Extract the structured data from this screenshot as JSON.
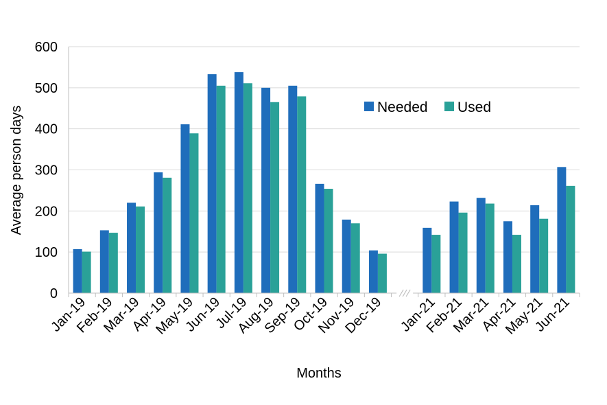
{
  "chart_data": {
    "type": "bar",
    "title": "",
    "xlabel": "Months",
    "ylabel": "Average person days",
    "ylim": [
      0,
      600
    ],
    "yticks": [
      0,
      100,
      200,
      300,
      400,
      500,
      600
    ],
    "grid": true,
    "legend_position": "top-right",
    "axis_break_between": [
      "Dec-19",
      "Jan-21"
    ],
    "categories": [
      "Jan-19",
      "Feb-19",
      "Mar-19",
      "Apr-19",
      "May-19",
      "Jun-19",
      "Jul-19",
      "Aug-19",
      "Sep-19",
      "Oct-19",
      "Nov-19",
      "Dec-19",
      "",
      "Jan-21",
      "Feb-21",
      "Mar-21",
      "Apr-21",
      "May-21",
      "Jun-21"
    ],
    "series": [
      {
        "name": "Needed",
        "color": "#1f6dbb",
        "values": [
          107,
          153,
          220,
          294,
          411,
          533,
          538,
          500,
          505,
          266,
          179,
          104,
          null,
          159,
          223,
          232,
          175,
          214,
          307
        ]
      },
      {
        "name": "Used",
        "color": "#2aa198",
        "values": [
          101,
          147,
          211,
          281,
          389,
          505,
          511,
          465,
          479,
          254,
          170,
          96,
          null,
          142,
          196,
          218,
          142,
          181,
          261
        ]
      }
    ]
  }
}
